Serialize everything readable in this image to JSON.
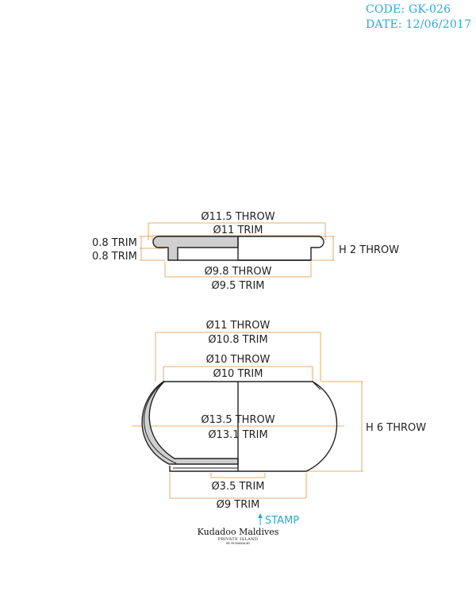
{
  "header": {
    "code": "CODE: GK-026",
    "date": "DATE: 12/06/2017"
  },
  "lid": {
    "d_throw_top": "Ø11.5 THROW",
    "d_trim_top": "Ø11 TRIM",
    "trim_upper": "0.8 TRIM",
    "trim_lower": "0.8 TRIM",
    "height": "H 2 THROW",
    "d_throw_bottom": "Ø9.8 THROW",
    "d_trim_bottom": "Ø9.5 TRIM"
  },
  "bowl": {
    "d_throw_top": "Ø11 THROW",
    "d_trim_top": "Ø10.8 TRIM",
    "d_throw_inner": "Ø10 THROW",
    "d_trim_inner": "Ø10 TRIM",
    "d_throw_mid": "Ø13.5 THROW",
    "d_trim_mid": "Ø13.1 TRIM",
    "height": "H 6 THROW",
    "d_trim_foot": "Ø3.5 TRIM",
    "d_trim_base": "Ø9 TRIM"
  },
  "stamp": {
    "label": "STAMP",
    "logo_name": "Kudadoo Maldives",
    "logo_sub": "PRIVATE ISLAND",
    "logo_by": "BY HURAWALHI"
  },
  "colors": {
    "dimension": "#e8913a",
    "accent": "#29a9d6",
    "wall_fill": "#cfcfcf"
  }
}
